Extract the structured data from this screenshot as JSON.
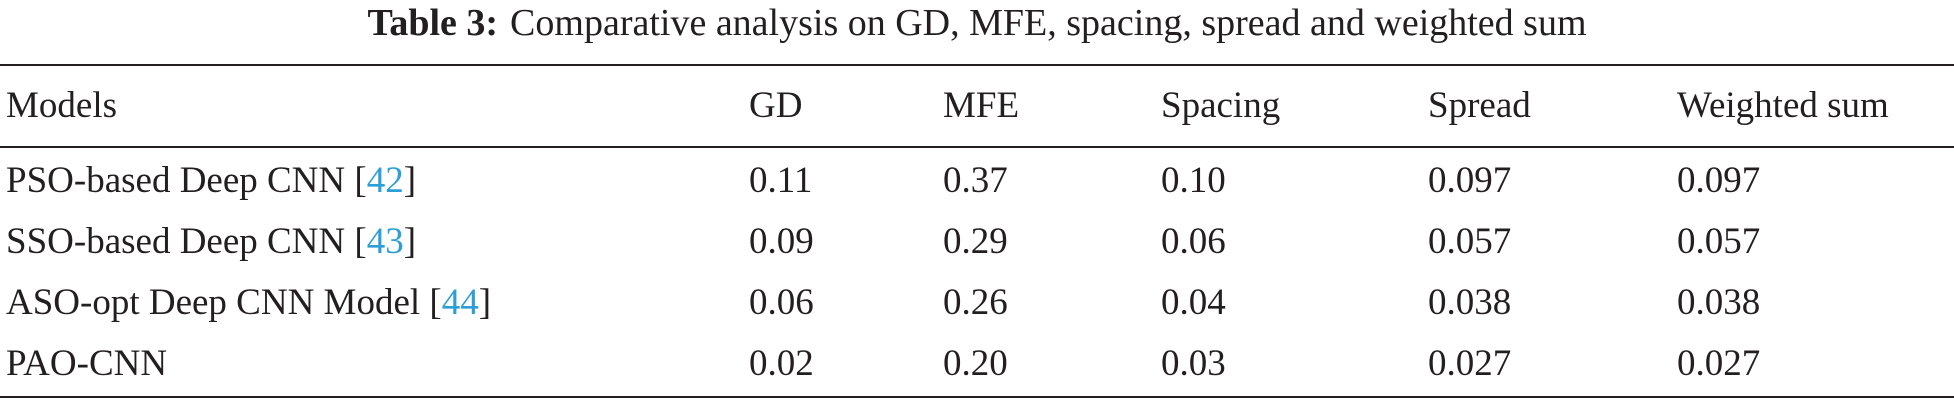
{
  "table": {
    "caption_label": "Table 3:",
    "caption": "Comparative analysis on GD, MFE, spacing, spread and weighted sum",
    "header": [
      "Models",
      "GD",
      "MFE",
      "Spacing",
      "Spread",
      "Weighted sum"
    ],
    "rows": [
      {
        "model": [
          "PSO-based Deep CNN [",
          "42",
          "]"
        ],
        "values": [
          "0.11",
          "0.37",
          "0.10",
          "0.097",
          "0.097"
        ]
      },
      {
        "model": [
          "SSO-based Deep CNN [",
          "43",
          "]"
        ],
        "values": [
          "0.09",
          "0.29",
          "0.06",
          "0.057",
          "0.057"
        ]
      },
      {
        "model": [
          "ASO-opt Deep CNN Model [",
          "44",
          "]"
        ],
        "values": [
          "0.06",
          "0.26",
          "0.04",
          "0.038",
          "0.038"
        ]
      },
      {
        "model": [
          "PAO-CNN"
        ],
        "values": [
          "0.02",
          "0.20",
          "0.03",
          "0.027",
          "0.027"
        ]
      }
    ]
  }
}
